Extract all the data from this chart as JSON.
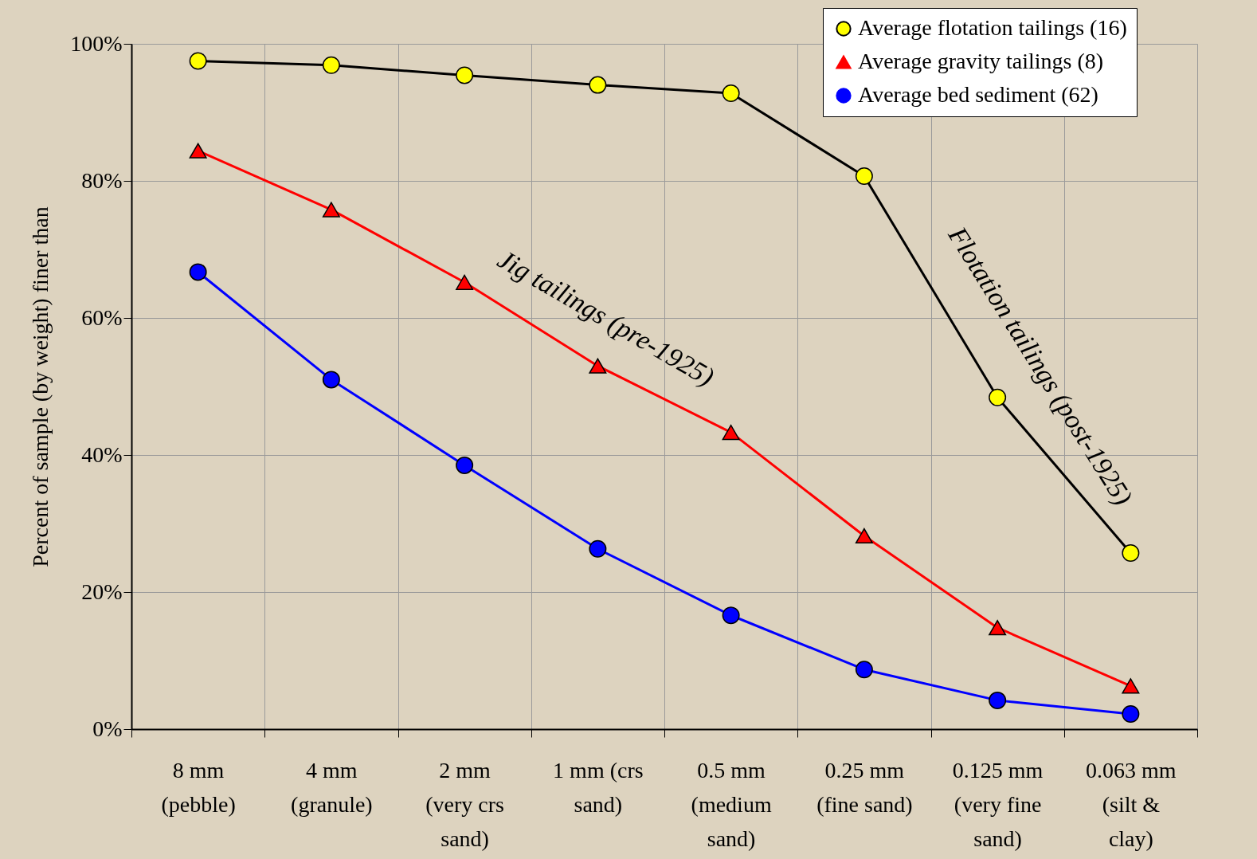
{
  "chart_data": {
    "type": "line",
    "ylabel": "Percent of sample (by weight) finer than",
    "categories": [
      "8 mm\n(pebble)",
      "4 mm\n(granule)",
      "2 mm\n(very crs\nsand)",
      "1 mm (crs\nsand)",
      "0.5 mm\n(medium\nsand)",
      "0.25 mm\n(fine sand)",
      "0.125 mm\n(very fine\nsand)",
      "0.063 mm\n(silt &\nclay)"
    ],
    "series": [
      {
        "name": "Average flotation tailings (16)",
        "color": "#000000",
        "marker": "circle",
        "colors": [
          "#ffff00",
          "#ffff00",
          "#ffff00",
          "#ffff00",
          "#ffff00",
          "#ffff00",
          "#ffff00",
          "#ffff00"
        ],
        "values": [
          97.5,
          96.9,
          95.4,
          94.0,
          92.8,
          80.7,
          48.4,
          25.7
        ]
      },
      {
        "name": "Average gravity tailings (8)",
        "color": "#ff0000",
        "marker": "triangle",
        "colors": [
          "#ff0000",
          "#ff0000",
          "#ff0000",
          "#ff0000",
          "#ff0000",
          "#ff0000",
          "#ff0000",
          "#ff0000"
        ],
        "values": [
          84.4,
          75.8,
          65.2,
          53.0,
          43.3,
          28.2,
          14.8,
          6.3
        ]
      },
      {
        "name": "Average bed sediment (62)",
        "color": "#0000ff",
        "marker": "circle",
        "colors": [
          "#0000ff",
          "#0000ff",
          "#0000ff",
          "#0000ff",
          "#0000ff",
          "#0000ff",
          "#0000ff",
          "#0000ff"
        ],
        "values": [
          66.7,
          51.0,
          38.5,
          26.3,
          16.6,
          8.7,
          4.2,
          2.2
        ]
      }
    ],
    "ylim": [
      0,
      100
    ],
    "yticks": [
      {
        "value": 0,
        "label": "0%"
      },
      {
        "value": 20,
        "label": "20%"
      },
      {
        "value": 40,
        "label": "40%"
      },
      {
        "value": 60,
        "label": "60%"
      },
      {
        "value": 80,
        "label": "80%"
      },
      {
        "value": 100,
        "label": "100%"
      }
    ],
    "grid": true,
    "legend": "top right",
    "line_style": "solid",
    "annotations": [
      "Jig tailings (pre-1925)",
      "Flotation tailings (post-1925)"
    ]
  }
}
